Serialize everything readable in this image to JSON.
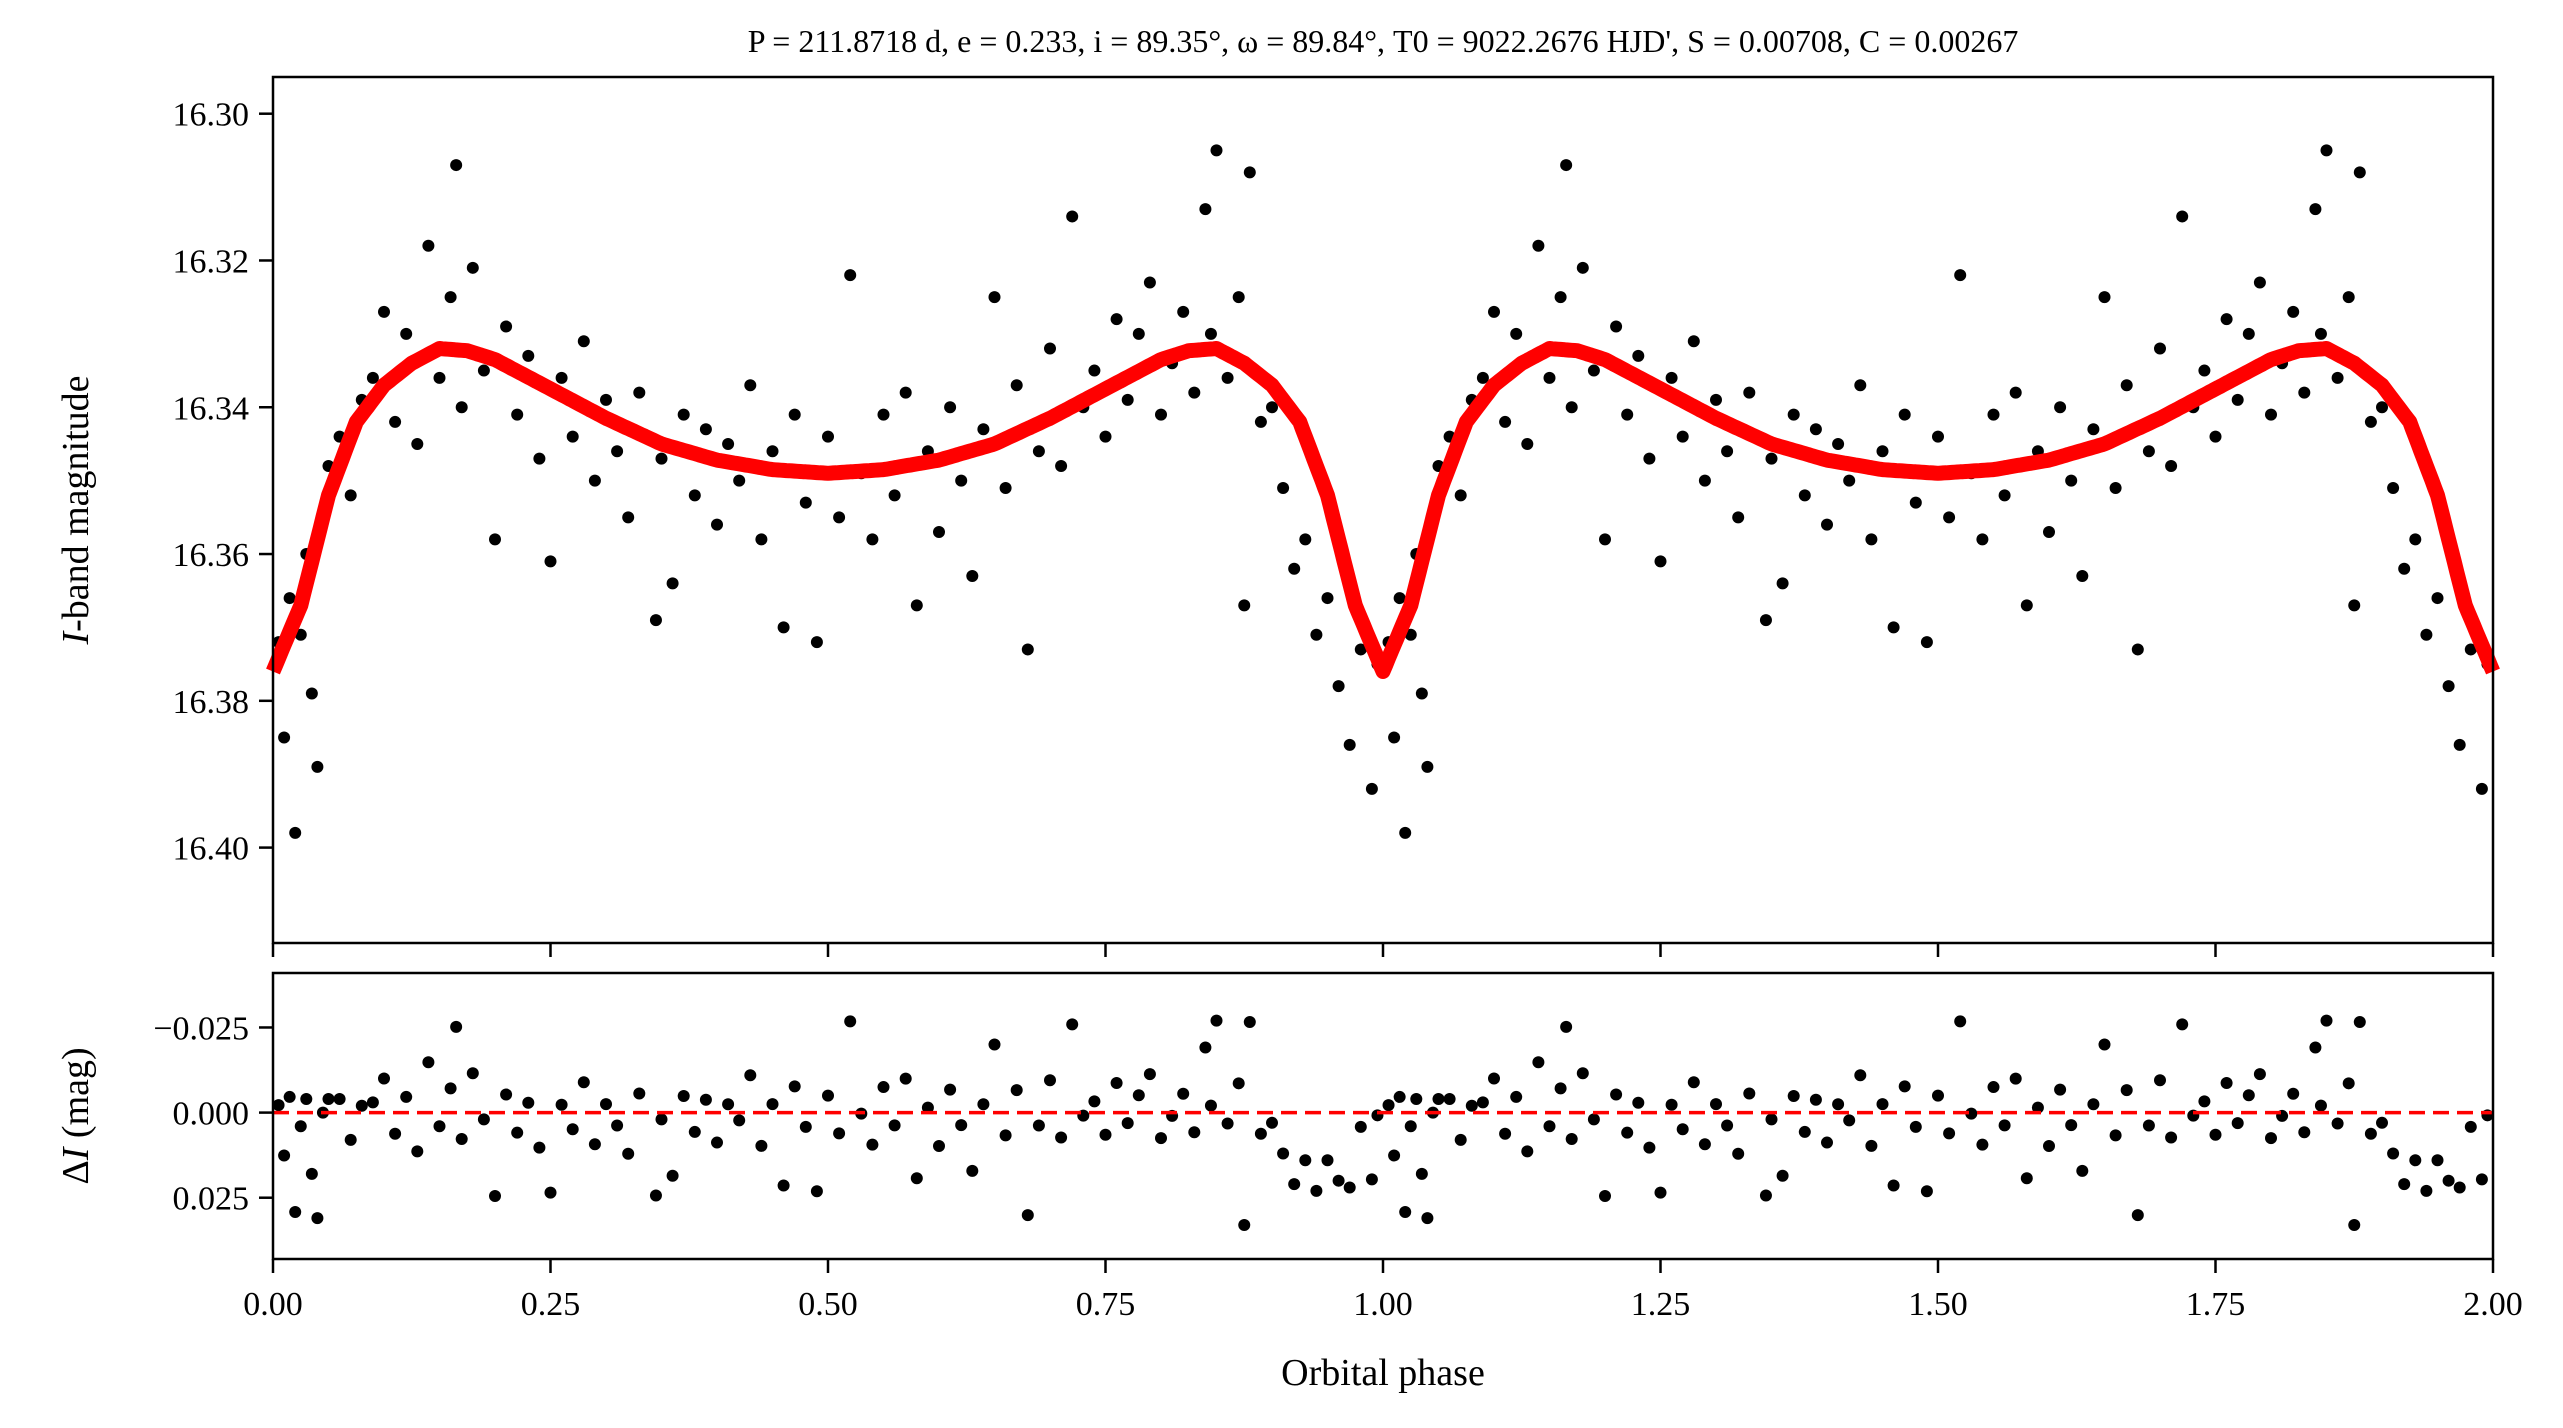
{
  "chart_data": [
    {
      "type": "scatter",
      "panel": "light curve",
      "title": "P = 211.8718 d, e = 0.233, i = 89.35°, ω = 89.84°, T0 = 9022.2676 HJD', S = 0.00708, C = 0.00267",
      "xlabel": "Orbital phase",
      "ylabel_italic": "I",
      "ylabel_rest": "-band magnitude",
      "xlim": [
        0,
        2
      ],
      "ylim": [
        16.413,
        16.295
      ],
      "y_inverted": true,
      "yticks": [
        "16.30",
        "16.32",
        "16.34",
        "16.36",
        "16.38",
        "16.40"
      ],
      "ytick_values": [
        16.3,
        16.32,
        16.34,
        16.36,
        16.38,
        16.4
      ],
      "xtick_values": [
        0,
        0.25,
        0.5,
        0.75,
        1.0,
        1.25,
        1.5,
        1.75,
        2.0
      ],
      "grid": false,
      "colors": {
        "points": "#000000",
        "model": "#ff0000"
      },
      "model_curve": {
        "note_phase_symmetric": true,
        "phase": [
          0.0,
          0.025,
          0.05,
          0.075,
          0.1,
          0.125,
          0.15,
          0.175,
          0.2,
          0.25,
          0.3,
          0.35,
          0.4,
          0.45,
          0.5
        ],
        "mag": [
          16.376,
          16.367,
          16.352,
          16.342,
          16.337,
          16.334,
          16.332,
          16.3323,
          16.3335,
          16.3375,
          16.3415,
          16.345,
          16.3472,
          16.3485,
          16.349
        ]
      },
      "points": [
        [
          0.005,
          16.372
        ],
        [
          0.01,
          16.385
        ],
        [
          0.015,
          16.366
        ],
        [
          0.02,
          16.398
        ],
        [
          0.025,
          16.371
        ],
        [
          0.03,
          16.36
        ],
        [
          0.035,
          16.379
        ],
        [
          0.04,
          16.389
        ],
        [
          0.045,
          16.355
        ],
        [
          0.05,
          16.348
        ],
        [
          0.06,
          16.344
        ],
        [
          0.07,
          16.352
        ],
        [
          0.08,
          16.339
        ],
        [
          0.09,
          16.336
        ],
        [
          0.1,
          16.327
        ],
        [
          0.11,
          16.342
        ],
        [
          0.12,
          16.33
        ],
        [
          0.13,
          16.345
        ],
        [
          0.14,
          16.318
        ],
        [
          0.15,
          16.336
        ],
        [
          0.16,
          16.325
        ],
        [
          0.165,
          16.307
        ],
        [
          0.17,
          16.34
        ],
        [
          0.18,
          16.321
        ],
        [
          0.19,
          16.335
        ],
        [
          0.2,
          16.358
        ],
        [
          0.21,
          16.329
        ],
        [
          0.22,
          16.341
        ],
        [
          0.23,
          16.333
        ],
        [
          0.24,
          16.347
        ],
        [
          0.25,
          16.361
        ],
        [
          0.26,
          16.336
        ],
        [
          0.27,
          16.344
        ],
        [
          0.28,
          16.331
        ],
        [
          0.29,
          16.35
        ],
        [
          0.3,
          16.339
        ],
        [
          0.31,
          16.346
        ],
        [
          0.32,
          16.355
        ],
        [
          0.33,
          16.338
        ],
        [
          0.345,
          16.369
        ],
        [
          0.35,
          16.347
        ],
        [
          0.36,
          16.364
        ],
        [
          0.37,
          16.341
        ],
        [
          0.38,
          16.352
        ],
        [
          0.39,
          16.343
        ],
        [
          0.4,
          16.356
        ],
        [
          0.41,
          16.345
        ],
        [
          0.42,
          16.35
        ],
        [
          0.43,
          16.337
        ],
        [
          0.44,
          16.358
        ],
        [
          0.45,
          16.346
        ],
        [
          0.46,
          16.37
        ],
        [
          0.47,
          16.341
        ],
        [
          0.48,
          16.353
        ],
        [
          0.49,
          16.372
        ],
        [
          0.5,
          16.344
        ],
        [
          0.51,
          16.355
        ],
        [
          0.52,
          16.322
        ],
        [
          0.53,
          16.349
        ],
        [
          0.54,
          16.358
        ],
        [
          0.55,
          16.341
        ],
        [
          0.56,
          16.352
        ],
        [
          0.57,
          16.338
        ],
        [
          0.58,
          16.367
        ],
        [
          0.59,
          16.346
        ],
        [
          0.6,
          16.357
        ],
        [
          0.61,
          16.34
        ],
        [
          0.62,
          16.35
        ],
        [
          0.63,
          16.363
        ],
        [
          0.64,
          16.343
        ],
        [
          0.65,
          16.325
        ],
        [
          0.66,
          16.351
        ],
        [
          0.67,
          16.337
        ],
        [
          0.68,
          16.373
        ],
        [
          0.69,
          16.346
        ],
        [
          0.7,
          16.332
        ],
        [
          0.71,
          16.348
        ],
        [
          0.72,
          16.314
        ],
        [
          0.73,
          16.34
        ],
        [
          0.74,
          16.335
        ],
        [
          0.75,
          16.344
        ],
        [
          0.76,
          16.328
        ],
        [
          0.77,
          16.339
        ],
        [
          0.78,
          16.33
        ],
        [
          0.79,
          16.323
        ],
        [
          0.8,
          16.341
        ],
        [
          0.81,
          16.334
        ],
        [
          0.82,
          16.327
        ],
        [
          0.83,
          16.338
        ],
        [
          0.84,
          16.313
        ],
        [
          0.845,
          16.33
        ],
        [
          0.85,
          16.305
        ],
        [
          0.86,
          16.336
        ],
        [
          0.87,
          16.325
        ],
        [
          0.875,
          16.367
        ],
        [
          0.88,
          16.308
        ],
        [
          0.89,
          16.342
        ],
        [
          0.9,
          16.34
        ],
        [
          0.91,
          16.351
        ],
        [
          0.92,
          16.362
        ],
        [
          0.93,
          16.358
        ],
        [
          0.94,
          16.371
        ],
        [
          0.95,
          16.366
        ],
        [
          0.96,
          16.378
        ],
        [
          0.97,
          16.386
        ],
        [
          0.98,
          16.373
        ],
        [
          0.99,
          16.392
        ],
        [
          0.995,
          16.375
        ]
      ],
      "points_repeat_offset": 1
    },
    {
      "type": "scatter",
      "panel": "residuals",
      "xlabel": "Orbital phase",
      "ylabel_prefix": "Δ",
      "ylabel_italic": "I",
      "ylabel_rest": " (mag)",
      "xlim": [
        0,
        2
      ],
      "ylim": [
        0.043,
        -0.041
      ],
      "y_inverted": true,
      "yticks": [
        "−0.025",
        "0.000",
        "0.025"
      ],
      "ytick_values": [
        -0.025,
        0.0,
        0.025
      ],
      "xticks": [
        "0.00",
        "0.25",
        "0.50",
        "0.75",
        "1.00",
        "1.25",
        "1.50",
        "1.75",
        "2.00"
      ],
      "xtick_values": [
        0,
        0.25,
        0.5,
        0.75,
        1.0,
        1.25,
        1.5,
        1.75,
        2.0
      ],
      "zero_line": {
        "value": 0,
        "style": "dashed",
        "color": "#ff0000"
      },
      "residuals_definition": "observed minus model"
    }
  ]
}
